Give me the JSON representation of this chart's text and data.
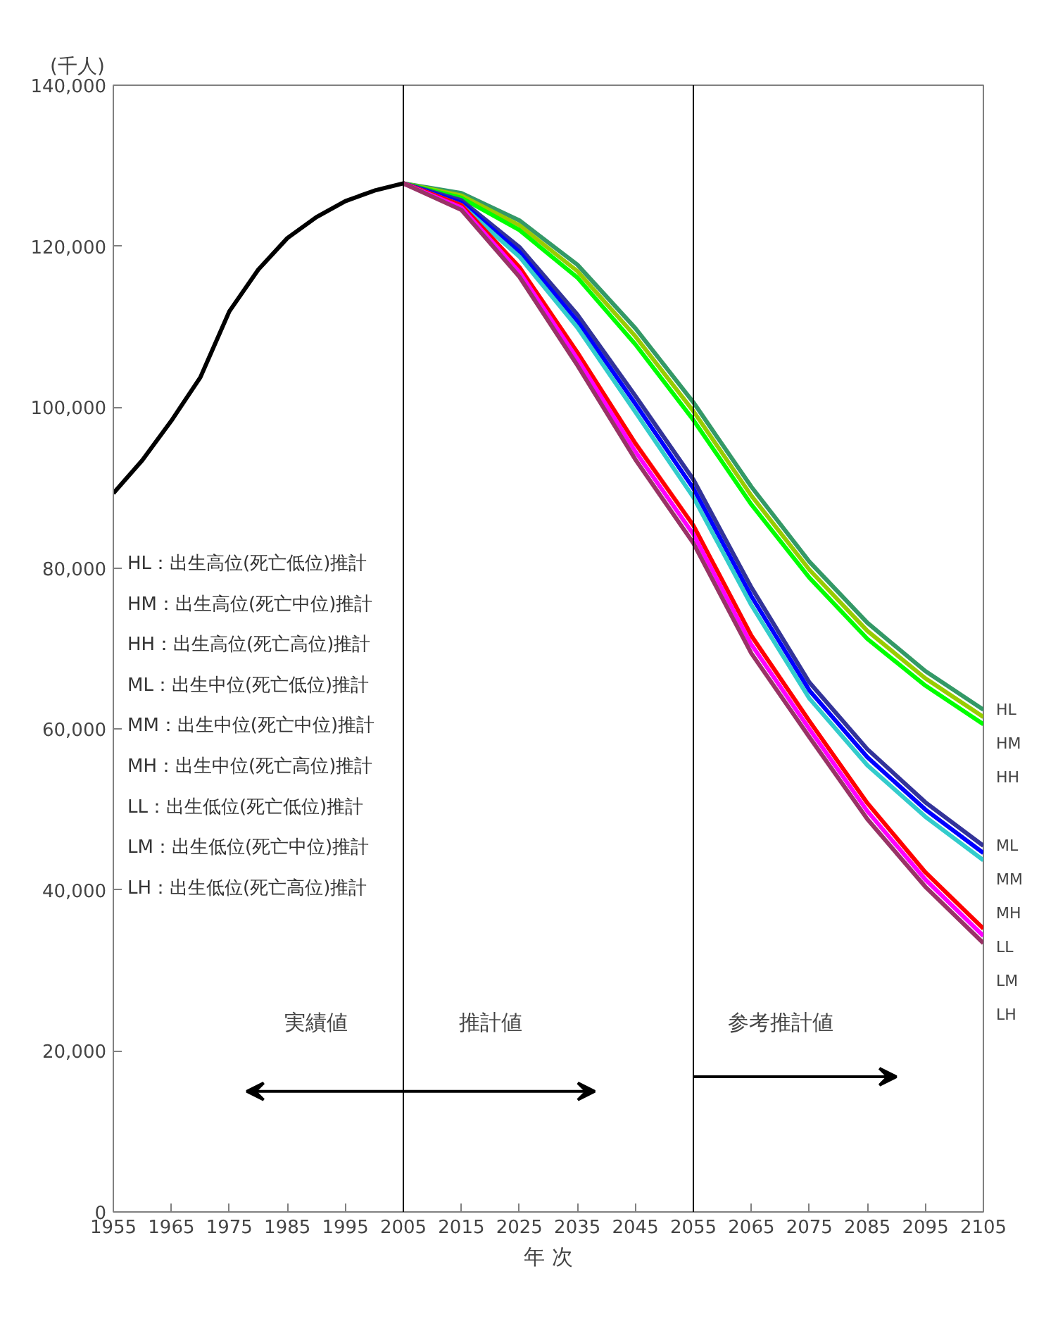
{
  "chart_data": {
    "type": "line",
    "ylabel": "(千人)",
    "xlabel": "年 次",
    "xlim": [
      1955,
      2105
    ],
    "xticks": [
      1955,
      1965,
      1975,
      1985,
      1995,
      2005,
      2015,
      2025,
      2035,
      2045,
      2055,
      2065,
      2075,
      2085,
      2095,
      2105
    ],
    "ylim": [
      0,
      140000
    ],
    "yticks": [
      {
        "value": 0,
        "label": "0"
      },
      {
        "value": 20000,
        "label": "20,000"
      },
      {
        "value": 40000,
        "label": "40,000"
      },
      {
        "value": 60000,
        "label": "60,000"
      },
      {
        "value": 80000,
        "label": "80,000"
      },
      {
        "value": 100000,
        "label": "100,000"
      },
      {
        "value": 120000,
        "label": "120,000"
      },
      {
        "value": 140000,
        "label": "140,000"
      }
    ],
    "grid": false,
    "series": [
      {
        "color": "#000000",
        "x": [
          1955,
          1960,
          1965,
          1970,
          1975,
          1980,
          1985,
          1990,
          1995,
          2000,
          2005
        ],
        "values": [
          89300,
          93400,
          98300,
          103700,
          111900,
          117100,
          121000,
          123600,
          125600,
          126900,
          127800
        ]
      },
      {
        "name": "HL",
        "color": "#339966",
        "x": [
          2005,
          2015,
          2025,
          2035,
          2045,
          2055,
          2065,
          2075,
          2085,
          2095,
          2105
        ],
        "values": [
          127800,
          126600,
          123200,
          117700,
          109800,
          100600,
          90100,
          80800,
          73200,
          67200,
          62400
        ]
      },
      {
        "name": "HM",
        "color": "#99cc00",
        "x": [
          2005,
          2015,
          2025,
          2035,
          2045,
          2055,
          2065,
          2075,
          2085,
          2095,
          2105
        ],
        "values": [
          127800,
          126300,
          122600,
          116900,
          108800,
          99500,
          89000,
          79800,
          72200,
          66300,
          61500
        ]
      },
      {
        "name": "HH",
        "color": "#00ff00",
        "x": [
          2005,
          2015,
          2025,
          2035,
          2045,
          2055,
          2065,
          2075,
          2085,
          2095,
          2105
        ],
        "values": [
          127800,
          126000,
          122000,
          116100,
          107800,
          98400,
          87900,
          78800,
          71200,
          65400,
          60600
        ]
      },
      {
        "name": "ML",
        "color": "#333399",
        "x": [
          2005,
          2015,
          2025,
          2035,
          2045,
          2055,
          2065,
          2075,
          2085,
          2095,
          2105
        ],
        "values": [
          127800,
          125700,
          119900,
          111500,
          101400,
          91000,
          77600,
          65800,
          57500,
          50900,
          45500
        ]
      },
      {
        "name": "MM",
        "color": "#0000ff",
        "x": [
          2005,
          2015,
          2025,
          2035,
          2045,
          2055,
          2065,
          2075,
          2085,
          2095,
          2105
        ],
        "values": [
          127800,
          125400,
          119300,
          110700,
          100400,
          89900,
          76500,
          64800,
          56500,
          50000,
          44600
        ]
      },
      {
        "name": "MH",
        "color": "#33cccc",
        "x": [
          2005,
          2015,
          2025,
          2035,
          2045,
          2055,
          2065,
          2075,
          2085,
          2095,
          2105
        ],
        "values": [
          127800,
          125100,
          118700,
          109900,
          99400,
          88800,
          75400,
          63800,
          55500,
          49100,
          43700
        ]
      },
      {
        "name": "LL",
        "color": "#ff0000",
        "x": [
          2005,
          2015,
          2025,
          2035,
          2045,
          2055,
          2065,
          2075,
          2085,
          2095,
          2105
        ],
        "values": [
          127800,
          125100,
          117400,
          106800,
          95500,
          85300,
          71600,
          61000,
          50800,
          42200,
          35200
        ]
      },
      {
        "name": "LM",
        "color": "#ff00ff",
        "x": [
          2005,
          2015,
          2025,
          2035,
          2045,
          2055,
          2065,
          2075,
          2085,
          2095,
          2105
        ],
        "values": [
          127800,
          124800,
          116800,
          106000,
          94500,
          84200,
          70500,
          60000,
          49800,
          41300,
          34300
        ]
      },
      {
        "name": "LH",
        "color": "#993366",
        "x": [
          2005,
          2015,
          2025,
          2035,
          2045,
          2055,
          2065,
          2075,
          2085,
          2095,
          2105
        ],
        "values": [
          127800,
          124500,
          116200,
          105200,
          93500,
          83100,
          69400,
          59000,
          48800,
          40400,
          33400
        ]
      }
    ],
    "ref_lines": [
      {
        "axis": "x",
        "value": 2005,
        "color": "#000000"
      },
      {
        "axis": "x",
        "value": 2055,
        "color": "#000000"
      }
    ],
    "annotations": [
      "実績値",
      "推計値",
      "参考推計値",
      "HL：出生高位(死亡低位)推計",
      "HM：出生高位(死亡中位)推計",
      "HH：出生高位(死亡高位)推計",
      "ML：出生中位(死亡低位)推計",
      "MM：出生中位(死亡中位)推計",
      "MH：出生中位(死亡高位)推計",
      "LL：出生低位(死亡低位)推計",
      "LM：出生低位(死亡中位)推計",
      "LH：出生低位(死亡高位)推計"
    ]
  }
}
